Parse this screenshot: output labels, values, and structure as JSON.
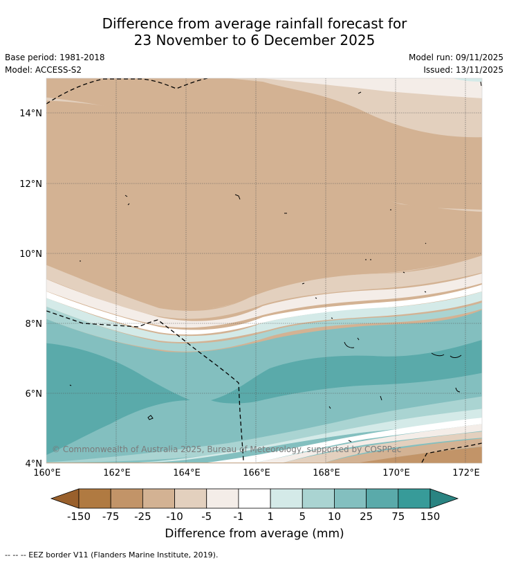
{
  "title": {
    "line1": "Difference from average rainfall forecast for",
    "line2": "23 November to 6 December 2025"
  },
  "meta": {
    "base_period": "Base period: 1981-2018",
    "model": "Model: ACCESS-S2",
    "model_run": "Model run: 09/11/2025",
    "issued": "Issued: 13/11/2025"
  },
  "map": {
    "lat_ticks": [
      "14°N",
      "12°N",
      "10°N",
      "8°N",
      "6°N",
      "4°N"
    ],
    "lon_ticks": [
      "160°E",
      "162°E",
      "164°E",
      "166°E",
      "168°E",
      "170°E",
      "172°E"
    ],
    "copyright": "© Commonwealth of Australia 2025, Bureau of Meteorology, supported by COSPPac"
  },
  "colorbar": {
    "title": "Difference from average (mm)",
    "tick_labels": [
      "-150",
      "-75",
      "-25",
      "-10",
      "-5",
      "-1",
      "1",
      "5",
      "10",
      "25",
      "75",
      "150"
    ],
    "colors": [
      "#99602c",
      "#b07a41",
      "#c29468",
      "#d3b293",
      "#e3d0be",
      "#f4ede8",
      "#ffffff",
      "#d4eae8",
      "#aad4d2",
      "#83bfbf",
      "#5aaaaa",
      "#379b99",
      "#2a8482"
    ]
  },
  "footer": {
    "legend": "-- -- -- EEZ border V11 (Flanders Marine Institute, 2019)."
  }
}
